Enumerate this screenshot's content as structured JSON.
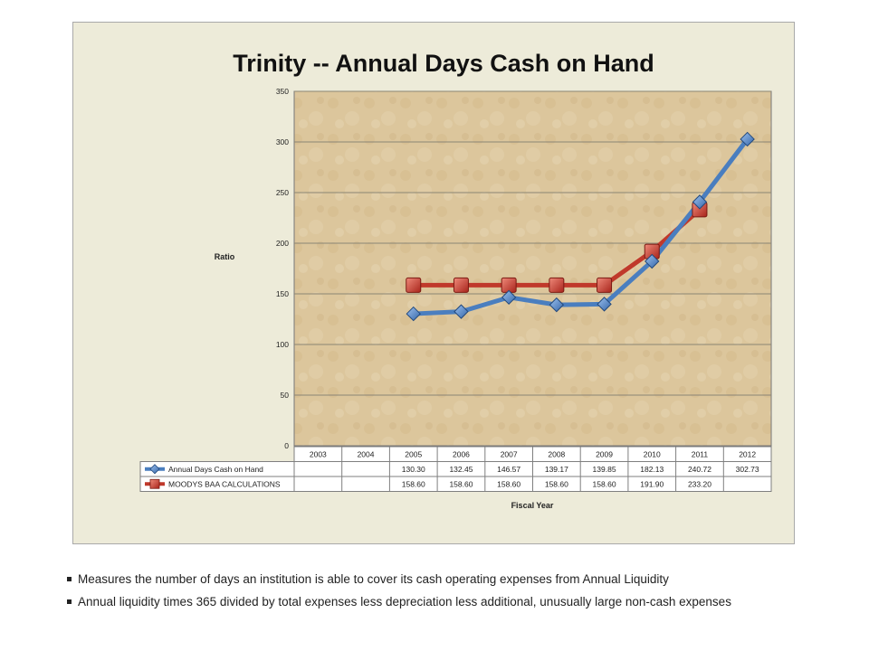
{
  "colors": {
    "frame_bg": "#edebd9",
    "plot_bg": "#dcc69c",
    "series_blue": "#4a7ebf",
    "series_red": "#c0392b",
    "grid": "#8a8574"
  },
  "chart_data": {
    "type": "line",
    "title": "Trinity -- Annual Days Cash on Hand",
    "xlabel": "Fiscal Year",
    "ylabel": "Ratio",
    "ylim": [
      0,
      350
    ],
    "yticks": [
      "0",
      "50",
      "100",
      "150",
      "200",
      "250",
      "300",
      "350"
    ],
    "grid": true,
    "legend_placement": "data table",
    "categories": [
      "2003",
      "2004",
      "2005",
      "2006",
      "2007",
      "2008",
      "2009",
      "2010",
      "2011",
      "2012"
    ],
    "series": [
      {
        "name": "Annual Days Cash on Hand",
        "marker": "diamond",
        "values": [
          null,
          null,
          130.3,
          132.45,
          146.57,
          139.17,
          139.85,
          182.13,
          240.72,
          302.73
        ],
        "labels": [
          "",
          "",
          "130.30",
          "132.45",
          "146.57",
          "139.17",
          "139.85",
          "182.13",
          "240.72",
          "302.73"
        ]
      },
      {
        "name": "MOODYS BAA CALCULATIONS",
        "marker": "square",
        "values": [
          null,
          null,
          158.6,
          158.6,
          158.6,
          158.6,
          158.6,
          191.9,
          233.2,
          null
        ],
        "labels": [
          "",
          "",
          "158.60",
          "158.60",
          "158.60",
          "158.60",
          "158.60",
          "191.90",
          "233.20",
          ""
        ]
      }
    ]
  },
  "bullets": [
    "Measures the number of days an institution is able to cover its cash operating expenses from Annual Liquidity",
    "Annual liquidity times 365 divided by total expenses less depreciation less additional, unusually large non-cash expenses"
  ]
}
